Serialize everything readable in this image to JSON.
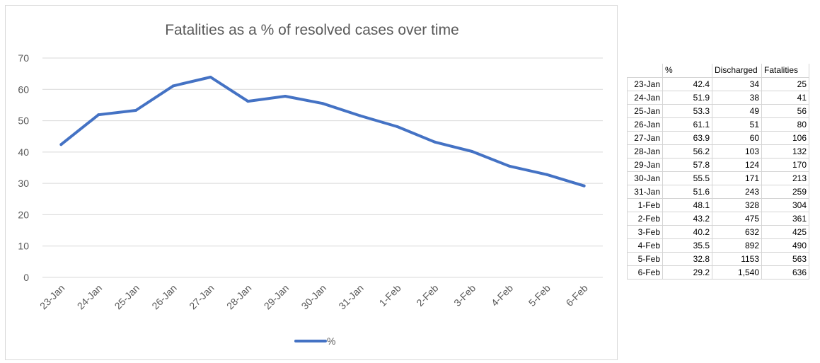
{
  "chart_data": {
    "type": "line",
    "title": "Fatalities as a % of resolved cases over time",
    "xlabel": "",
    "ylabel": "",
    "categories": [
      "23-Jan",
      "24-Jan",
      "25-Jan",
      "26-Jan",
      "27-Jan",
      "28-Jan",
      "29-Jan",
      "30-Jan",
      "31-Jan",
      "1-Feb",
      "2-Feb",
      "3-Feb",
      "4-Feb",
      "5-Feb",
      "6-Feb"
    ],
    "series": [
      {
        "name": "%",
        "values": [
          42.4,
          51.9,
          53.3,
          61.1,
          63.9,
          56.2,
          57.8,
          55.5,
          51.6,
          48.1,
          43.2,
          40.2,
          35.5,
          32.8,
          29.2
        ],
        "color": "#4472c4"
      }
    ],
    "ylim": [
      0,
      70
    ],
    "yticks": [
      0,
      10,
      20,
      30,
      40,
      50,
      60,
      70
    ],
    "grid": true,
    "legend": "bottom"
  },
  "table": {
    "headers": [
      "",
      "%",
      "Discharged",
      "Fatalities"
    ],
    "rows": [
      [
        "23-Jan",
        "42.4",
        "34",
        "25"
      ],
      [
        "24-Jan",
        "51.9",
        "38",
        "41"
      ],
      [
        "25-Jan",
        "53.3",
        "49",
        "56"
      ],
      [
        "26-Jan",
        "61.1",
        "51",
        "80"
      ],
      [
        "27-Jan",
        "63.9",
        "60",
        "106"
      ],
      [
        "28-Jan",
        "56.2",
        "103",
        "132"
      ],
      [
        "29-Jan",
        "57.8",
        "124",
        "170"
      ],
      [
        "30-Jan",
        "55.5",
        "171",
        "213"
      ],
      [
        "31-Jan",
        "51.6",
        "243",
        "259"
      ],
      [
        "1-Feb",
        "48.1",
        "328",
        "304"
      ],
      [
        "2-Feb",
        "43.2",
        "475",
        "361"
      ],
      [
        "3-Feb",
        "40.2",
        "632",
        "425"
      ],
      [
        "4-Feb",
        "35.5",
        "892",
        "490"
      ],
      [
        "5-Feb",
        "32.8",
        "1153",
        "563"
      ],
      [
        "6-Feb",
        "29.2",
        "1,540",
        "636"
      ]
    ]
  },
  "colors": {
    "line": "#4472c4",
    "grid": "#d9d9d9",
    "axis_text": "#595959"
  }
}
